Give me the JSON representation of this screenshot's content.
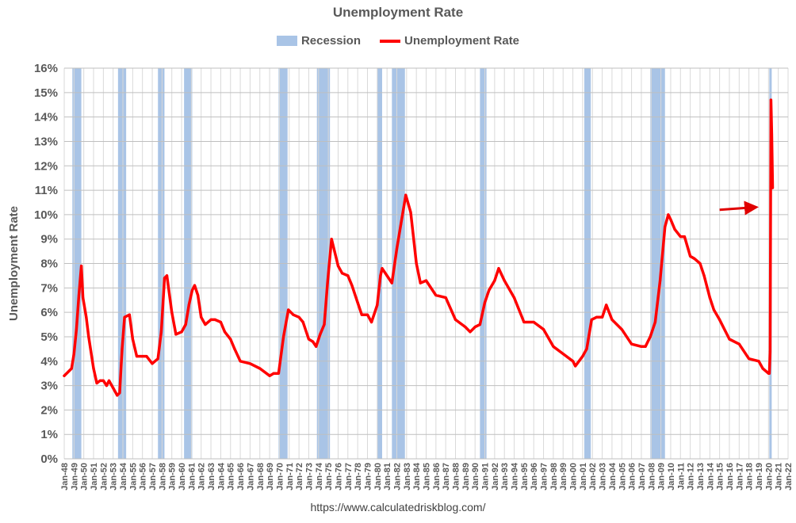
{
  "chart_data": {
    "type": "line",
    "title": "Unemployment Rate",
    "ylabel": "Unemployment Rate",
    "xlabel": "",
    "ylim": [
      0,
      16
    ],
    "yticks": [
      "0%",
      "1%",
      "2%",
      "3%",
      "4%",
      "5%",
      "6%",
      "7%",
      "8%",
      "9%",
      "10%",
      "11%",
      "12%",
      "13%",
      "14%",
      "15%",
      "16%"
    ],
    "xlim": [
      "Jan-48",
      "Jan-22"
    ],
    "xticks": [
      "Jan-48",
      "Jan-49",
      "Jan-50",
      "Jan-51",
      "Jan-52",
      "Jan-53",
      "Jan-54",
      "Jan-55",
      "Jan-56",
      "Jan-57",
      "Jan-58",
      "Jan-59",
      "Jan-60",
      "Jan-61",
      "Jan-62",
      "Jan-63",
      "Jan-64",
      "Jan-65",
      "Jan-66",
      "Jan-67",
      "Jan-68",
      "Jan-69",
      "Jan-70",
      "Jan-71",
      "Jan-72",
      "Jan-73",
      "Jan-74",
      "Jan-75",
      "Jan-76",
      "Jan-77",
      "Jan-78",
      "Jan-79",
      "Jan-80",
      "Jan-81",
      "Jan-82",
      "Jan-83",
      "Jan-84",
      "Jan-85",
      "Jan-86",
      "Jan-87",
      "Jan-88",
      "Jan-89",
      "Jan-90",
      "Jan-91",
      "Jan-92",
      "Jan-93",
      "Jan-94",
      "Jan-95",
      "Jan-96",
      "Jan-97",
      "Jan-98",
      "Jan-99",
      "Jan-00",
      "Jan-01",
      "Jan-02",
      "Jan-03",
      "Jan-04",
      "Jan-05",
      "Jan-06",
      "Jan-07",
      "Jan-08",
      "Jan-09",
      "Jan-10",
      "Jan-11",
      "Jan-12",
      "Jan-13",
      "Jan-14",
      "Jan-15",
      "Jan-16",
      "Jan-17",
      "Jan-18",
      "Jan-19",
      "Jan-20",
      "Jan-21",
      "Jan-22"
    ],
    "grid": true,
    "legend_position": "top",
    "legend": [
      "Recession",
      "Unemployment Rate"
    ],
    "recessions": [
      {
        "start": "Nov-48",
        "end": "Oct-49"
      },
      {
        "start": "Jul-53",
        "end": "May-54"
      },
      {
        "start": "Aug-57",
        "end": "Apr-58"
      },
      {
        "start": "Apr-60",
        "end": "Feb-61"
      },
      {
        "start": "Dec-69",
        "end": "Nov-70"
      },
      {
        "start": "Nov-73",
        "end": "Mar-75"
      },
      {
        "start": "Jan-80",
        "end": "Jul-80"
      },
      {
        "start": "Jul-81",
        "end": "Nov-82"
      },
      {
        "start": "Jul-90",
        "end": "Mar-91"
      },
      {
        "start": "Mar-01",
        "end": "Nov-01"
      },
      {
        "start": "Dec-07",
        "end": "Jun-09"
      },
      {
        "start": "Feb-20",
        "end": "Apr-20"
      }
    ],
    "series": [
      {
        "name": "Unemployment Rate",
        "x": [
          "Jan-48",
          "Jul-48",
          "Oct-48",
          "Jan-49",
          "Apr-49",
          "Jul-49",
          "Oct-49",
          "Dec-49",
          "Apr-50",
          "Jul-50",
          "Jan-51",
          "May-51",
          "Sep-51",
          "Jan-52",
          "May-52",
          "Aug-52",
          "Jan-53",
          "Jun-53",
          "Sep-53",
          "Dec-53",
          "Mar-54",
          "Sep-54",
          "Jan-55",
          "Jun-55",
          "Dec-55",
          "Jun-56",
          "Jan-57",
          "Aug-57",
          "Dec-57",
          "Apr-58",
          "Jul-58",
          "Jan-59",
          "Jun-59",
          "Jan-60",
          "Jun-60",
          "Oct-60",
          "Feb-61",
          "May-61",
          "Sep-61",
          "Jan-62",
          "Jun-62",
          "Jan-63",
          "Jun-63",
          "Jan-64",
          "Jun-64",
          "Jan-65",
          "Jun-65",
          "Jan-66",
          "Jan-67",
          "Jan-68",
          "Jan-69",
          "Jun-69",
          "Dec-69",
          "Jun-70",
          "Dec-70",
          "Jun-71",
          "Jan-72",
          "Jun-72",
          "Jan-73",
          "Jun-73",
          "Oct-73",
          "Mar-74",
          "Aug-74",
          "Dec-74",
          "May-75",
          "Jan-76",
          "Jun-76",
          "Jan-77",
          "Jun-77",
          "Jan-78",
          "Jun-78",
          "Jan-79",
          "Jun-79",
          "Jan-80",
          "May-80",
          "Jul-80",
          "Jan-81",
          "Jul-81",
          "Jan-82",
          "Jun-82",
          "Dec-82",
          "Jun-83",
          "Jan-84",
          "Jun-84",
          "Jan-85",
          "Jan-86",
          "Jan-87",
          "Jan-88",
          "Jan-89",
          "Jul-89",
          "Jan-90",
          "Jul-90",
          "Jan-91",
          "Jun-91",
          "Jan-92",
          "Jun-92",
          "Jan-93",
          "Jan-94",
          "Jan-95",
          "Jan-96",
          "Jan-97",
          "Jan-98",
          "Jan-99",
          "Jan-00",
          "Apr-00",
          "Jan-01",
          "Jun-01",
          "Dec-01",
          "Jun-02",
          "Jan-03",
          "Jun-03",
          "Jan-04",
          "Jan-05",
          "Jan-06",
          "Jan-07",
          "Jun-07",
          "Dec-07",
          "Jun-08",
          "Dec-08",
          "Jun-09",
          "Oct-09",
          "Jan-10",
          "Jun-10",
          "Jan-11",
          "Jun-11",
          "Jan-12",
          "Jun-12",
          "Jan-13",
          "Jun-13",
          "Jan-14",
          "Jun-14",
          "Jan-15",
          "Jan-16",
          "Jan-17",
          "Jan-18",
          "Jan-19",
          "Jun-19",
          "Jan-20",
          "Feb-20",
          "Mar-20",
          "Apr-20",
          "May-20",
          "Jun-20"
        ],
        "values": [
          3.4,
          3.6,
          3.7,
          4.3,
          5.3,
          6.7,
          7.9,
          6.6,
          5.8,
          5.0,
          3.7,
          3.1,
          3.2,
          3.2,
          3.0,
          3.2,
          2.9,
          2.6,
          2.7,
          4.5,
          5.8,
          5.9,
          4.9,
          4.2,
          4.2,
          4.2,
          3.9,
          4.1,
          5.2,
          7.4,
          7.5,
          6.0,
          5.1,
          5.2,
          5.5,
          6.3,
          6.9,
          7.1,
          6.7,
          5.8,
          5.5,
          5.7,
          5.7,
          5.6,
          5.2,
          4.9,
          4.5,
          4.0,
          3.9,
          3.7,
          3.4,
          3.5,
          3.5,
          5.0,
          6.1,
          5.9,
          5.8,
          5.6,
          4.9,
          4.8,
          4.6,
          5.1,
          5.5,
          7.2,
          9.0,
          7.9,
          7.6,
          7.5,
          7.1,
          6.4,
          5.9,
          5.9,
          5.6,
          6.3,
          7.5,
          7.8,
          7.5,
          7.2,
          8.6,
          9.6,
          10.8,
          10.1,
          8.0,
          7.2,
          7.3,
          6.7,
          6.6,
          5.7,
          5.4,
          5.2,
          5.4,
          5.5,
          6.4,
          6.9,
          7.3,
          7.8,
          7.3,
          6.6,
          5.6,
          5.6,
          5.3,
          4.6,
          4.3,
          4.0,
          3.8,
          4.2,
          4.5,
          5.7,
          5.8,
          5.8,
          6.3,
          5.7,
          5.3,
          4.7,
          4.6,
          4.6,
          5.0,
          5.6,
          7.3,
          9.5,
          10.0,
          9.8,
          9.4,
          9.1,
          9.1,
          8.3,
          8.2,
          8.0,
          7.5,
          6.6,
          6.1,
          5.7,
          4.9,
          4.7,
          4.1,
          4.0,
          3.7,
          3.5,
          3.5,
          4.4,
          14.7,
          13.3,
          11.1
        ]
      }
    ],
    "colors": {
      "recession": "#a9c4e6",
      "line": "#ff0000",
      "gridline": "#c8c8c8",
      "axis_text": "#595959"
    },
    "annotations": [
      {
        "type": "arrow",
        "from": {
          "x": "Jan-15",
          "y": 10.2
        },
        "to": {
          "x": "Jan-19",
          "y": 10.3
        },
        "color": "#e00000"
      }
    ]
  },
  "source": "https://www.calculatedriskblog.com/"
}
